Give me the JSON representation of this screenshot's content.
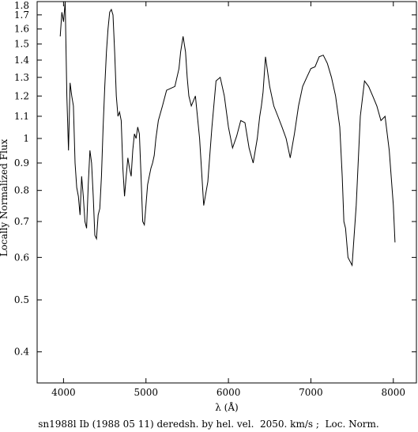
{
  "chart_data": {
    "type": "line",
    "title": "",
    "caption": "sn1988l Ib (1988 05 11) deredsh. by hel. vel.  2050. km/s ;  Loc. Norm.",
    "xlabel": "λ (Å)",
    "ylabel": "Locally Normalized Flux",
    "xlim": [
      3680,
      8280
    ],
    "ylim": [
      0.35,
      1.8
    ],
    "yscale": "log",
    "grid": false,
    "x_ticks": [
      4000,
      5000,
      6000,
      7000,
      8000
    ],
    "x_tick_labels": [
      "4000",
      "5000",
      "6000",
      "7000",
      "8000"
    ],
    "y_ticks": [
      0.4,
      0.5,
      0.6,
      0.7,
      0.8,
      0.9,
      1.0,
      1.1,
      1.2,
      1.3,
      1.4,
      1.5,
      1.6,
      1.7,
      1.8
    ],
    "y_tick_labels": [
      "0.4",
      "0.5",
      "0.6",
      "0.7",
      "0.8",
      "0.9",
      "1",
      "1.1",
      "1.2",
      "1.3",
      "1.4",
      "1.5",
      "1.6",
      "1.7",
      "1.8"
    ],
    "series": [
      {
        "color": "#000000",
        "x": [
          3960,
          3980,
          4000,
          4020,
          4040,
          4060,
          4080,
          4100,
          4120,
          4140,
          4160,
          4180,
          4200,
          4220,
          4240,
          4260,
          4280,
          4300,
          4320,
          4340,
          4360,
          4380,
          4400,
          4420,
          4440,
          4460,
          4480,
          4500,
          4520,
          4540,
          4560,
          4580,
          4600,
          4620,
          4640,
          4660,
          4680,
          4700,
          4720,
          4740,
          4760,
          4780,
          4800,
          4820,
          4840,
          4860,
          4880,
          4900,
          4920,
          4940,
          4960,
          4980,
          5000,
          5020,
          5040,
          5060,
          5080,
          5100,
          5120,
          5150,
          5200,
          5250,
          5300,
          5350,
          5400,
          5420,
          5450,
          5480,
          5500,
          5520,
          5550,
          5600,
          5650,
          5700,
          5750,
          5800,
          5850,
          5900,
          5950,
          6000,
          6050,
          6100,
          6150,
          6200,
          6250,
          6300,
          6350,
          6380,
          6400,
          6420,
          6450,
          6500,
          6550,
          6600,
          6650,
          6700,
          6750,
          6800,
          6850,
          6900,
          6950,
          7000,
          7050,
          7100,
          7150,
          7200,
          7250,
          7300,
          7350,
          7380,
          7400,
          7420,
          7450,
          7500,
          7550,
          7600,
          7650,
          7700,
          7750,
          7800,
          7850,
          7900,
          7950,
          8000,
          8020
        ],
        "y": [
          1.55,
          1.72,
          1.65,
          1.8,
          1.2,
          0.95,
          1.27,
          1.2,
          1.15,
          0.9,
          0.81,
          0.78,
          0.72,
          0.85,
          0.78,
          0.7,
          0.68,
          0.82,
          0.95,
          0.9,
          0.78,
          0.66,
          0.65,
          0.72,
          0.74,
          0.85,
          1.05,
          1.25,
          1.45,
          1.6,
          1.72,
          1.74,
          1.7,
          1.45,
          1.2,
          1.1,
          1.12,
          1.08,
          0.88,
          0.78,
          0.85,
          0.92,
          0.88,
          0.85,
          0.95,
          1.02,
          1.0,
          1.05,
          1.02,
          0.85,
          0.7,
          0.69,
          0.75,
          0.82,
          0.85,
          0.88,
          0.9,
          0.93,
          1.0,
          1.08,
          1.15,
          1.23,
          1.24,
          1.25,
          1.35,
          1.45,
          1.55,
          1.45,
          1.3,
          1.2,
          1.15,
          1.2,
          1.0,
          0.75,
          0.83,
          1.05,
          1.28,
          1.3,
          1.2,
          1.05,
          0.96,
          1.01,
          1.08,
          1.07,
          0.96,
          0.9,
          1.0,
          1.1,
          1.15,
          1.22,
          1.42,
          1.25,
          1.15,
          1.1,
          1.05,
          1.0,
          0.92,
          1.02,
          1.15,
          1.25,
          1.3,
          1.35,
          1.36,
          1.42,
          1.43,
          1.38,
          1.3,
          1.2,
          1.05,
          0.85,
          0.7,
          0.68,
          0.6,
          0.58,
          0.75,
          1.1,
          1.28,
          1.25,
          1.2,
          1.15,
          1.08,
          1.1,
          0.95,
          0.75,
          0.64
        ]
      }
    ]
  }
}
